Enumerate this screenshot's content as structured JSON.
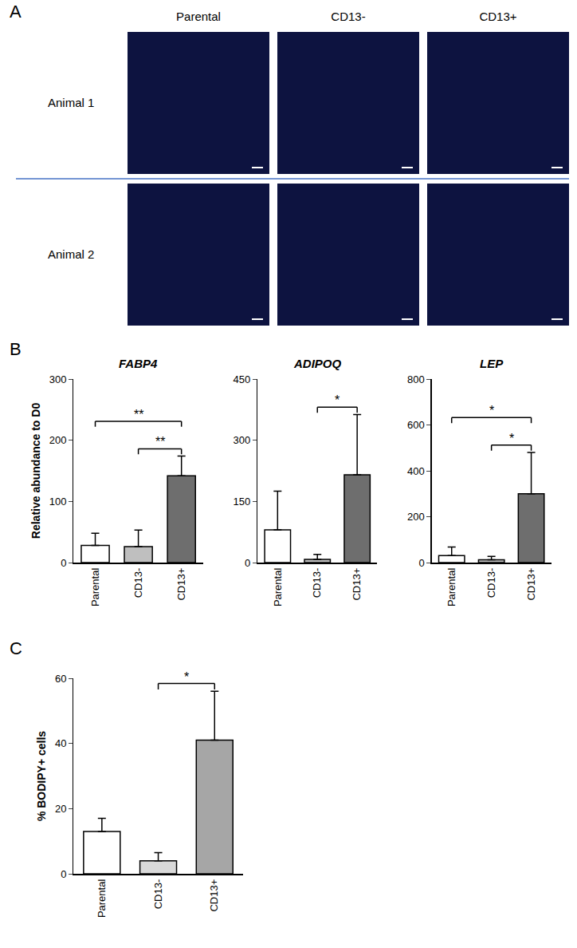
{
  "image_panel": {
    "panel": "A",
    "columns": [
      "Parental",
      "CD13-",
      "CD13+"
    ],
    "rows": [
      "Animal 1",
      "Animal 2"
    ]
  },
  "chart_data": [
    {
      "panel": "B",
      "type": "bar",
      "title": "FABP4",
      "y_label": "Relative abundance to D0",
      "categories": [
        "Parental",
        "CD13-",
        "CD13+"
      ],
      "values": [
        28,
        26,
        142
      ],
      "errors": [
        20,
        27,
        32
      ],
      "colors": [
        "#ffffff",
        "#bfbfbf",
        "#6e6e6e"
      ],
      "ylim": [
        0,
        300
      ],
      "yticks": [
        0,
        100,
        200,
        300
      ],
      "grid": false,
      "significance": [
        {
          "from": "CD13-",
          "to": "CD13+",
          "label": "**"
        },
        {
          "from": "Parental",
          "to": "CD13+",
          "label": "**"
        }
      ]
    },
    {
      "panel": "B",
      "type": "bar",
      "title": "ADIPOQ",
      "categories": [
        "Parental",
        "CD13-",
        "CD13+"
      ],
      "values": [
        80,
        8,
        215
      ],
      "errors": [
        95,
        12,
        148
      ],
      "colors": [
        "#ffffff",
        "#bfbfbf",
        "#6e6e6e"
      ],
      "ylim": [
        0,
        450
      ],
      "yticks": [
        0,
        150,
        300,
        450
      ],
      "grid": false,
      "significance": [
        {
          "from": "CD13-",
          "to": "CD13+",
          "label": "*"
        }
      ]
    },
    {
      "panel": "B",
      "type": "bar",
      "title": "LEP",
      "categories": [
        "Parental",
        "CD13-",
        "CD13+"
      ],
      "values": [
        30,
        12,
        300
      ],
      "errors": [
        38,
        15,
        180
      ],
      "colors": [
        "#ffffff",
        "#bfbfbf",
        "#6e6e6e"
      ],
      "ylim": [
        0,
        800
      ],
      "yticks": [
        0,
        200,
        400,
        600,
        800
      ],
      "grid": false,
      "significance": [
        {
          "from": "CD13-",
          "to": "CD13+",
          "label": "*"
        },
        {
          "from": "Parental",
          "to": "CD13+",
          "label": "*"
        }
      ]
    },
    {
      "panel": "C",
      "type": "bar",
      "y_label": "% BODIPY+ cells",
      "categories": [
        "Parental",
        "CD13-",
        "CD13+"
      ],
      "values": [
        13,
        4,
        41
      ],
      "errors": [
        4,
        2.5,
        15
      ],
      "colors": [
        "#ffffff",
        "#d9d9d9",
        "#a6a6a6"
      ],
      "ylim": [
        0,
        60
      ],
      "yticks": [
        0,
        20,
        40,
        60
      ],
      "grid": false,
      "significance": [
        {
          "from": "CD13-",
          "to": "CD13+",
          "label": "*"
        }
      ]
    }
  ]
}
